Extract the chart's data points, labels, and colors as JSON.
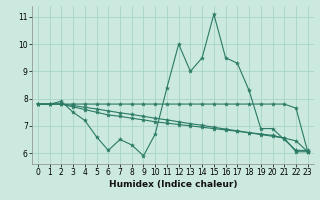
{
  "xlabel": "Humidex (Indice chaleur)",
  "x": [
    0,
    1,
    2,
    3,
    4,
    5,
    6,
    7,
    8,
    9,
    10,
    11,
    12,
    13,
    14,
    15,
    16,
    17,
    18,
    19,
    20,
    21,
    22,
    23
  ],
  "series": [
    [
      7.8,
      7.8,
      7.9,
      7.5,
      7.2,
      6.6,
      6.1,
      6.5,
      6.3,
      5.9,
      6.7,
      8.4,
      10.0,
      9.0,
      9.5,
      11.1,
      9.5,
      9.3,
      8.3,
      6.9,
      6.9,
      6.5,
      6.1,
      6.1
    ],
    [
      7.8,
      7.8,
      7.8,
      7.8,
      7.8,
      7.8,
      7.8,
      7.8,
      7.8,
      7.8,
      7.8,
      7.8,
      7.8,
      7.8,
      7.8,
      7.8,
      7.8,
      7.8,
      7.8,
      7.8,
      7.8,
      7.8,
      7.65,
      6.05
    ],
    [
      7.8,
      7.8,
      7.8,
      7.7,
      7.6,
      7.5,
      7.4,
      7.35,
      7.28,
      7.22,
      7.15,
      7.1,
      7.05,
      7.0,
      6.95,
      6.9,
      6.85,
      6.8,
      6.75,
      6.7,
      6.65,
      6.55,
      6.05,
      6.05
    ],
    [
      7.8,
      7.8,
      7.8,
      7.75,
      7.68,
      7.62,
      7.55,
      7.48,
      7.42,
      7.35,
      7.28,
      7.22,
      7.15,
      7.08,
      7.02,
      6.95,
      6.88,
      6.82,
      6.75,
      6.68,
      6.62,
      6.55,
      6.45,
      6.05
    ]
  ],
  "line_color": "#2A7A64",
  "bg_color": "#CBE9DF",
  "grid_color": "#A8D4C5",
  "ylim": [
    5.6,
    11.4
  ],
  "xlim": [
    -0.5,
    23.5
  ],
  "yticks": [
    6,
    7,
    8,
    9,
    10,
    11
  ],
  "xticks": [
    0,
    1,
    2,
    3,
    4,
    5,
    6,
    7,
    8,
    9,
    10,
    11,
    12,
    13,
    14,
    15,
    16,
    17,
    18,
    19,
    20,
    21,
    22,
    23
  ]
}
